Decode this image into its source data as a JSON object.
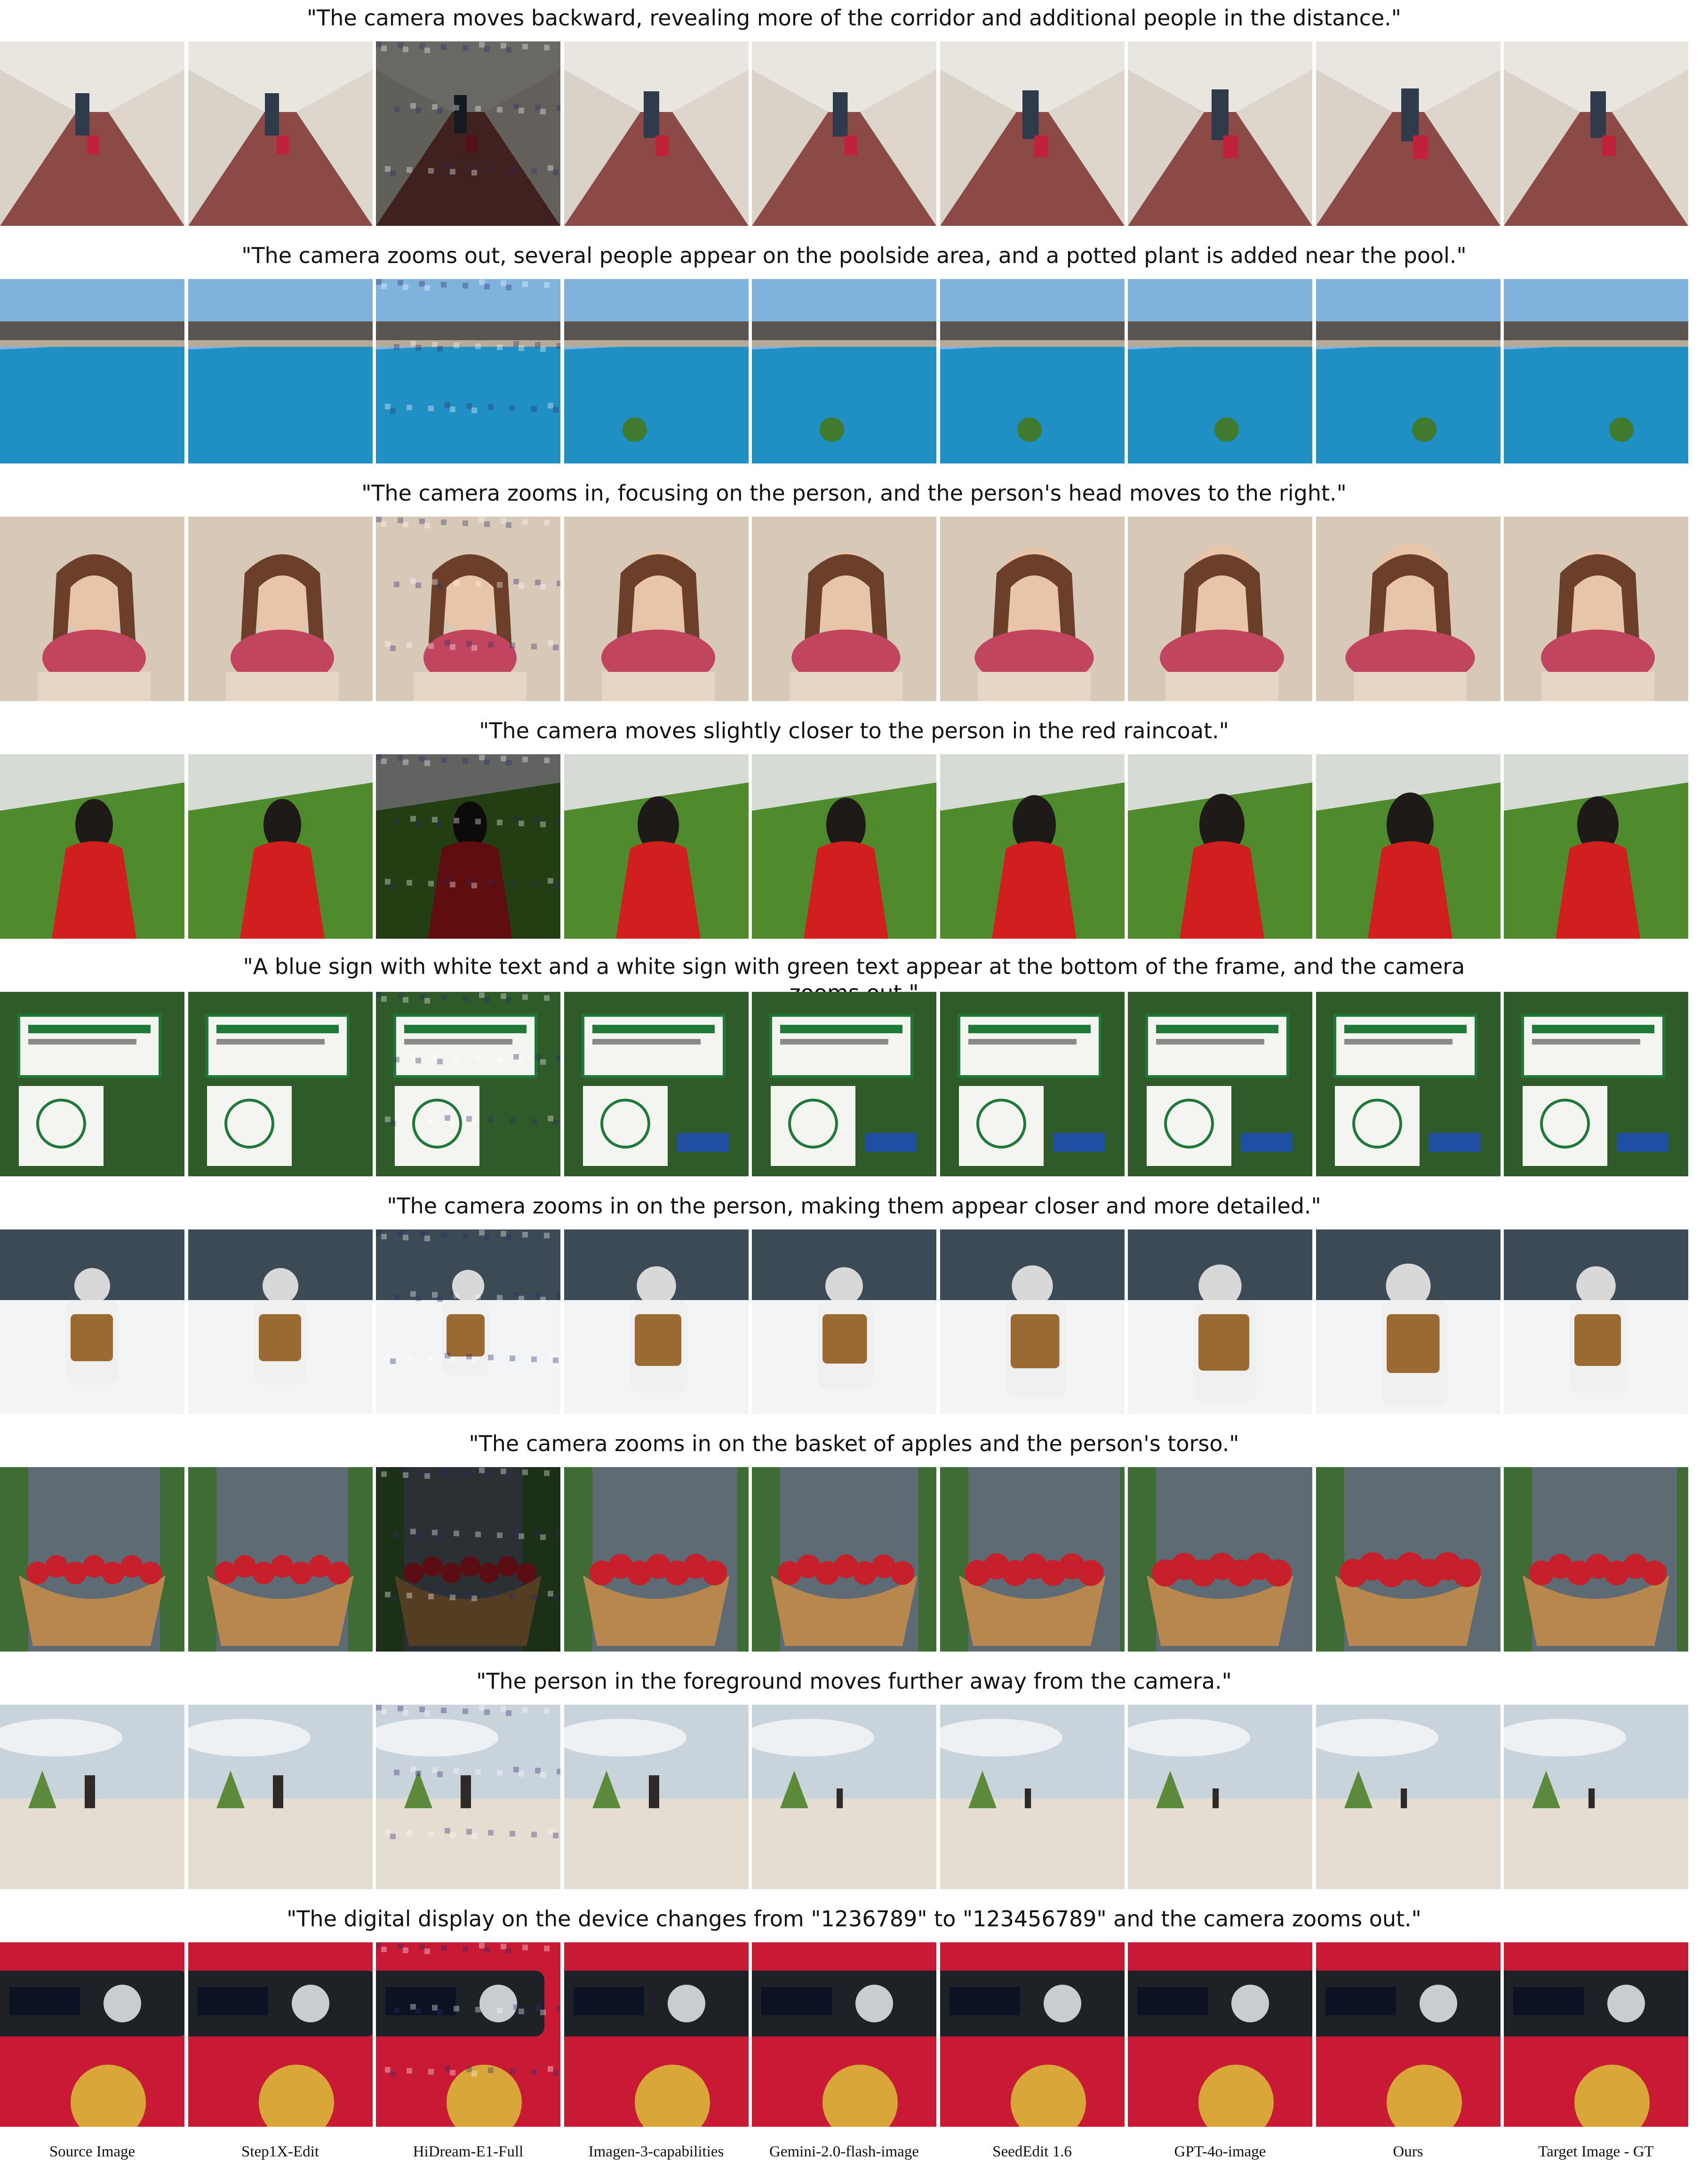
{
  "captions": [
    "\"The camera moves backward, revealing more of the corridor and additional people in the distance.\"",
    "\"The camera zooms out, several people appear on the poolside area, and a potted plant is added near the pool.\"",
    "\"The camera zooms in, focusing on the person, and the person's head moves to the right.\"",
    "\"The camera moves slightly closer to the person in the red raincoat.\"",
    "\"A blue sign with white text and a white sign with green text appear at the bottom of the frame, and the camera zooms out.\"",
    "\"The camera zooms in on the person, making them appear closer and more detailed.\"",
    "\"The camera zooms in on the basket of apples and the person's torso.\"",
    "\"The person in the foreground moves further away from the camera.\"",
    "\"The digital display on the device changes from \"1236789\" to \"123456789\" and the camera zooms out.\""
  ],
  "methods": [
    "Source Image",
    "Step1X-Edit",
    "HiDream-E1-Full",
    "Imagen-3-capabilities",
    "Gemini-2.0-flash-image",
    "SeedEdit 1.6",
    "GPT-4o-image",
    "Ours",
    "Target Image - GT"
  ],
  "scenes": [
    "corridor",
    "pool",
    "phone-woman",
    "raincoat",
    "signs",
    "snow",
    "apples",
    "beach",
    "device"
  ],
  "palettes": {
    "corridor": {
      "sky": "#e9e6e0",
      "ground": "#8c4a46",
      "subject": "#2f3a4a",
      "accent": "#c0223a"
    },
    "pool": {
      "sky": "#7fb3dd",
      "ground": "#1f8fc4",
      "subject": "#5a5550",
      "accent": "#3f7a2e"
    },
    "phone-woman": {
      "sky": "#d8c8b8",
      "ground": "#e7d6c4",
      "subject": "#6b3f2a",
      "accent": "#c24560"
    },
    "raincoat": {
      "sky": "#d7dbd6",
      "ground": "#4f8a2c",
      "subject": "#1e1a18",
      "accent": "#d11f1f"
    },
    "signs": {
      "sky": "#6f8f5a",
      "ground": "#2f5a2a",
      "subject": "#f4f4f0",
      "accent": "#1f7a3a"
    },
    "snow": {
      "sky": "#3b4a55",
      "ground": "#f2f4f6",
      "subject": "#f0f0f0",
      "accent": "#9a6a32"
    },
    "apples": {
      "sky": "#3f6b34",
      "ground": "#5e6a74",
      "subject": "#b8874e",
      "accent": "#c8202a"
    },
    "beach": {
      "sky": "#c9d3dc",
      "ground": "#e3ddd2",
      "subject": "#2d2a28",
      "accent": "#5d8a3a"
    },
    "device": {
      "sky": "#b0102a",
      "ground": "#c81a34",
      "subject": "#1e2226",
      "accent": "#d9a63a"
    }
  }
}
